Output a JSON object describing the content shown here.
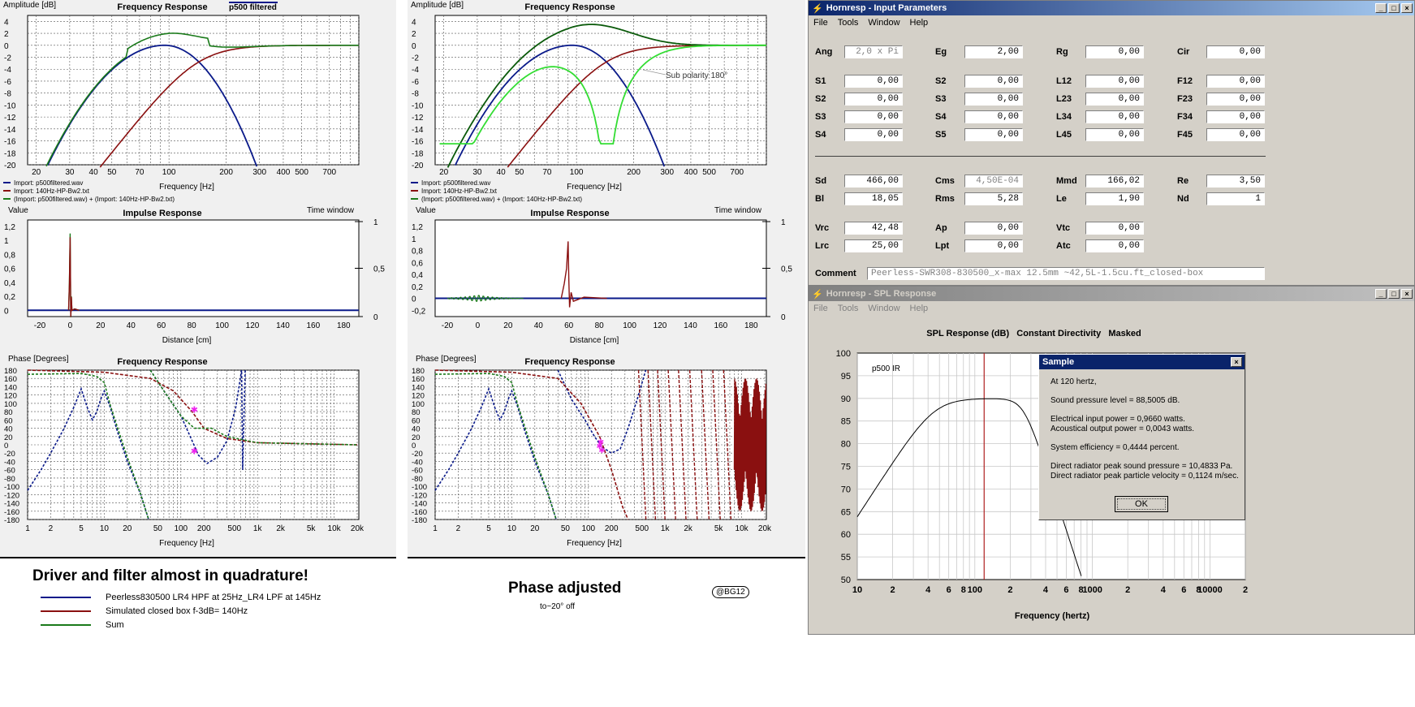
{
  "left_panel": {
    "freq": {
      "title": "Frequency Response",
      "badge": "p500 filtered",
      "ylabel": "Amplitude [dB]",
      "xlabel": "Frequency [Hz]",
      "yticks": [
        "4",
        "2",
        "0",
        "-2",
        "-4",
        "-6",
        "-8",
        "-10",
        "-12",
        "-14",
        "-16",
        "-18",
        "-20"
      ],
      "xticks": [
        "20",
        "30",
        "40",
        "50",
        "70",
        "100",
        "200",
        "300",
        "400",
        "500",
        "700"
      ],
      "legend": [
        "Import: p500filtered.wav",
        "Import: 140Hz-HP-Bw2.txt",
        "(Import: p500filtered.wav) + (Import: 140Hz-HP-Bw2.txt)"
      ]
    },
    "impulse": {
      "title": "Impulse Response",
      "ylabel": "Value",
      "right_label": "Time window",
      "xlabel": "Distance [cm]",
      "yticks": [
        "1,2",
        "1",
        "0,8",
        "0,6",
        "0,4",
        "0,2",
        "0"
      ],
      "rticks": [
        "1",
        "0,5",
        "0"
      ],
      "xticks": [
        "-20",
        "0",
        "20",
        "40",
        "60",
        "80",
        "100",
        "120",
        "140",
        "160",
        "180"
      ]
    },
    "phase": {
      "title": "Frequency Response",
      "ylabel": "Phase [Degrees]",
      "xlabel": "Frequency [Hz]",
      "yticks": [
        "180",
        "160",
        "140",
        "120",
        "100",
        "80",
        "60",
        "40",
        "20",
        "0",
        "-20",
        "-40",
        "-60",
        "-80",
        "-100",
        "-120",
        "-140",
        "-160",
        "-180"
      ],
      "xticks": [
        "1",
        "2",
        "5",
        "10",
        "20",
        "50",
        "100",
        "200",
        "500",
        "1k",
        "2k",
        "5k",
        "10k",
        "20k"
      ]
    }
  },
  "mid_panel": {
    "freq": {
      "title": "Frequency Response",
      "ylabel": "Amplitude [dB]",
      "xlabel": "Frequency [Hz]",
      "annotation": "Sub polarity 180°",
      "yticks": [
        "4",
        "2",
        "0",
        "-2",
        "-4",
        "-6",
        "-8",
        "-10",
        "-12",
        "-14",
        "-16",
        "-18",
        "-20"
      ],
      "xticks": [
        "20",
        "30",
        "40",
        "50",
        "70",
        "100",
        "200",
        "300",
        "400",
        "500",
        "700"
      ],
      "legend": [
        "Import: p500filtered.wav",
        "Import: 140Hz-HP-Bw2.txt",
        "(Import: p500filtered.wav) + (Import: 140Hz-HP-Bw2.txt)"
      ]
    },
    "impulse": {
      "title": "Impulse Response",
      "ylabel": "Value",
      "right_label": "Time window",
      "xlabel": "Distance [cm]",
      "yticks": [
        "1,2",
        "1",
        "0,8",
        "0,6",
        "0,4",
        "0,2",
        "0",
        "-0,2"
      ],
      "rticks": [
        "1",
        "0,5",
        "0"
      ],
      "xticks": [
        "-20",
        "0",
        "20",
        "40",
        "60",
        "80",
        "100",
        "120",
        "140",
        "160",
        "180"
      ]
    },
    "phase": {
      "title": "Frequency Response",
      "ylabel": "Phase [Degrees]",
      "xlabel": "Frequency [Hz]",
      "yticks": [
        "180",
        "160",
        "140",
        "120",
        "100",
        "80",
        "60",
        "40",
        "20",
        "0",
        "-20",
        "-40",
        "-60",
        "-80",
        "-100",
        "-120",
        "-140",
        "-160",
        "-180"
      ],
      "xticks": [
        "1",
        "2",
        "5",
        "10",
        "20",
        "50",
        "100",
        "200",
        "500",
        "1k",
        "2k",
        "5k",
        "10k",
        "20k"
      ]
    }
  },
  "bottom": {
    "heading_left": "Driver and filter almost in quadrature!",
    "legend": [
      {
        "label": "Peerless830500 LR4 HPF at 25Hz_LR4 LPF at 145Hz",
        "color": "#0a1a8a"
      },
      {
        "label": "Simulated closed box f-3dB= 140Hz",
        "color": "#8a1010"
      },
      {
        "label": "Sum",
        "color": "#1a7a1a"
      }
    ],
    "heading_mid": "Phase adjusted",
    "sub_mid": "to~20°  off",
    "tag": "@BG12"
  },
  "input_window": {
    "title": "Hornresp - Input Parameters",
    "menu": [
      "File",
      "Tools",
      "Window",
      "Help"
    ],
    "rows": [
      [
        {
          "l": "Ang",
          "v": "2,0 x Pi",
          "dis": true
        },
        {
          "l": "Eg",
          "v": "2,00"
        },
        {
          "l": "Rg",
          "v": "0,00"
        },
        {
          "l": "Cir",
          "v": "0,00"
        }
      ],
      [
        {
          "l": "S1",
          "v": "0,00"
        },
        {
          "l": "S2",
          "v": "0,00"
        },
        {
          "l": "L12",
          "v": "0,00"
        },
        {
          "l": "F12",
          "v": "0,00"
        }
      ],
      [
        {
          "l": "S2",
          "v": "0,00"
        },
        {
          "l": "S3",
          "v": "0,00"
        },
        {
          "l": "L23",
          "v": "0,00"
        },
        {
          "l": "F23",
          "v": "0,00"
        }
      ],
      [
        {
          "l": "S3",
          "v": "0,00"
        },
        {
          "l": "S4",
          "v": "0,00"
        },
        {
          "l": "L34",
          "v": "0,00"
        },
        {
          "l": "F34",
          "v": "0,00"
        }
      ],
      [
        {
          "l": "S4",
          "v": "0,00"
        },
        {
          "l": "S5",
          "v": "0,00"
        },
        {
          "l": "L45",
          "v": "0,00"
        },
        {
          "l": "F45",
          "v": "0,00"
        }
      ],
      [
        {
          "l": "Sd",
          "v": "466,00"
        },
        {
          "l": "Cms",
          "v": "4,50E-04",
          "dis": true
        },
        {
          "l": "Mmd",
          "v": "166,02"
        },
        {
          "l": "Re",
          "v": "3,50"
        }
      ],
      [
        {
          "l": "Bl",
          "v": "18,05"
        },
        {
          "l": "Rms",
          "v": "5,28"
        },
        {
          "l": "Le",
          "v": "1,90"
        },
        {
          "l": "Nd",
          "v": "1"
        }
      ],
      [
        {
          "l": "Vrc",
          "v": "42,48"
        },
        {
          "l": "Ap",
          "v": "0,00"
        },
        {
          "l": "Vtc",
          "v": "0,00"
        }
      ],
      [
        {
          "l": "Lrc",
          "v": "25,00"
        },
        {
          "l": "Lpt",
          "v": "0,00"
        },
        {
          "l": "Atc",
          "v": "0,00"
        }
      ]
    ],
    "comment_label": "Comment",
    "comment_value": "Peerless-SWR308-830500_x-max 12.5mm ~42,5L-1.5cu.ft_closed-box"
  },
  "spl_window": {
    "title": "Hornresp - SPL Response",
    "menu": [
      "File",
      "Tools",
      "Window",
      "Help"
    ],
    "heading": "SPL Response (dB)   Constant Directivity   Masked",
    "trace_label": "p500 IR",
    "xlabel": "Frequency (hertz)",
    "yticks": [
      "100",
      "95",
      "90",
      "85",
      "80",
      "75",
      "70",
      "65",
      "60",
      "55",
      "50"
    ],
    "xticks": [
      "10",
      "2",
      "4",
      "6",
      "8",
      "100",
      "2",
      "4",
      "6",
      "8",
      "1000",
      "2",
      "4",
      "6",
      "8",
      "10000",
      "2"
    ]
  },
  "dialog": {
    "title": "Sample",
    "lines": [
      "At 120 hertz,",
      "",
      "Sound pressure level = 88,5005 dB.",
      "",
      "Electrical input power = 0,9660 watts.",
      "Acoustical output power = 0,0043 watts.",
      "",
      "System efficiency = 0,4444 percent.",
      "",
      "Direct radiator peak sound pressure = 10,4833 Pa.",
      "Direct radiator peak particle velocity = 0,1124 m/sec."
    ],
    "ok": "OK"
  },
  "colors": {
    "blue": "#0a1a8a",
    "red": "#8a1010",
    "green": "#1a7a1a",
    "lightgreen": "#33dd33",
    "magenta": "#ee22ee"
  }
}
